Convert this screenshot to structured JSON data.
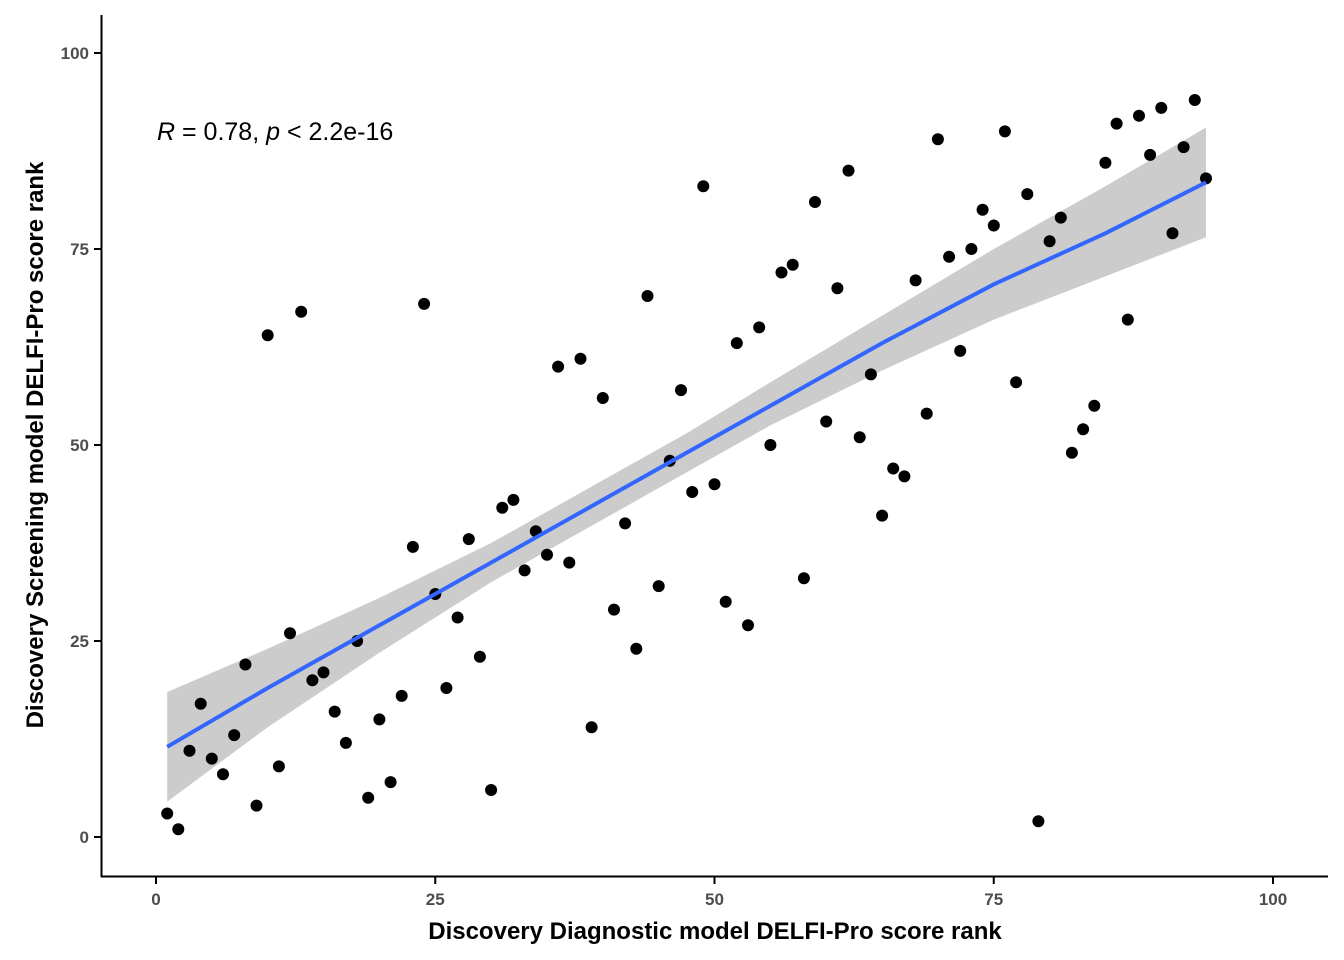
{
  "chart_data": {
    "type": "scatter",
    "xlabel": "Discovery Diagnostic model DELFI-Pro score rank",
    "ylabel": "Discovery Screening model DELFI-Pro score rank",
    "xlim": [
      -5,
      105
    ],
    "ylim": [
      -5,
      105
    ],
    "xticks": [
      "0",
      "25",
      "50",
      "75",
      "100"
    ],
    "yticks": [
      "0",
      "25",
      "50",
      "75",
      "100"
    ],
    "annotation": {
      "r_symbol": "R",
      "r_text": " = 0.78, ",
      "p_symbol": "p",
      "p_text": " < 2.2e-16"
    },
    "grid": false,
    "legend": "none",
    "point_color": "#000000",
    "trend_color": "#3366FF",
    "band_color": "#CCCCCC",
    "trend": {
      "x": [
        1,
        10,
        20,
        30,
        40,
        47.5,
        55,
        65,
        75,
        85,
        94
      ],
      "y": [
        11.5,
        19,
        27,
        35,
        43,
        49,
        55,
        63,
        70.5,
        77,
        83.5
      ],
      "lower": [
        4.5,
        14,
        23.5,
        32.5,
        40.5,
        46.5,
        52.5,
        59.5,
        66,
        71.5,
        76.5
      ],
      "upper": [
        18.5,
        24,
        30.5,
        37.5,
        45.5,
        51.5,
        58,
        66.5,
        75,
        83,
        90.5
      ]
    },
    "points": [
      [
        1,
        3
      ],
      [
        2,
        1
      ],
      [
        3,
        11
      ],
      [
        4,
        17
      ],
      [
        5,
        10
      ],
      [
        6,
        8
      ],
      [
        7,
        13
      ],
      [
        8,
        22
      ],
      [
        9,
        4
      ],
      [
        10,
        64
      ],
      [
        11,
        9
      ],
      [
        12,
        26
      ],
      [
        13,
        67
      ],
      [
        14,
        20
      ],
      [
        15,
        21
      ],
      [
        16,
        16
      ],
      [
        17,
        12
      ],
      [
        18,
        25
      ],
      [
        19,
        5
      ],
      [
        20,
        15
      ],
      [
        21,
        7
      ],
      [
        22,
        18
      ],
      [
        23,
        37
      ],
      [
        24,
        68
      ],
      [
        25,
        31
      ],
      [
        26,
        19
      ],
      [
        27,
        28
      ],
      [
        28,
        38
      ],
      [
        29,
        23
      ],
      [
        30,
        6
      ],
      [
        31,
        42
      ],
      [
        32,
        43
      ],
      [
        33,
        34
      ],
      [
        34,
        39
      ],
      [
        35,
        36
      ],
      [
        36,
        60
      ],
      [
        37,
        35
      ],
      [
        38,
        61
      ],
      [
        39,
        14
      ],
      [
        40,
        56
      ],
      [
        41,
        29
      ],
      [
        42,
        40
      ],
      [
        43,
        24
      ],
      [
        44,
        69
      ],
      [
        45,
        32
      ],
      [
        46,
        48
      ],
      [
        47,
        57
      ],
      [
        48,
        44
      ],
      [
        49,
        83
      ],
      [
        50,
        45
      ],
      [
        51,
        30
      ],
      [
        52,
        63
      ],
      [
        53,
        27
      ],
      [
        54,
        65
      ],
      [
        55,
        50
      ],
      [
        56,
        72
      ],
      [
        57,
        73
      ],
      [
        58,
        33
      ],
      [
        59,
        81
      ],
      [
        60,
        53
      ],
      [
        61,
        70
      ],
      [
        62,
        85
      ],
      [
        63,
        51
      ],
      [
        64,
        59
      ],
      [
        65,
        41
      ],
      [
        66,
        47
      ],
      [
        67,
        46
      ],
      [
        68,
        71
      ],
      [
        69,
        54
      ],
      [
        70,
        89
      ],
      [
        71,
        74
      ],
      [
        72,
        62
      ],
      [
        73,
        75
      ],
      [
        74,
        80
      ],
      [
        75,
        78
      ],
      [
        76,
        90
      ],
      [
        77,
        58
      ],
      [
        78,
        82
      ],
      [
        79,
        2
      ],
      [
        80,
        76
      ],
      [
        81,
        79
      ],
      [
        82,
        49
      ],
      [
        83,
        52
      ],
      [
        84,
        55
      ],
      [
        85,
        86
      ],
      [
        86,
        91
      ],
      [
        87,
        66
      ],
      [
        88,
        92
      ],
      [
        89,
        87
      ],
      [
        90,
        93
      ],
      [
        91,
        77
      ],
      [
        92,
        88
      ],
      [
        93,
        94
      ],
      [
        94,
        84
      ]
    ]
  }
}
